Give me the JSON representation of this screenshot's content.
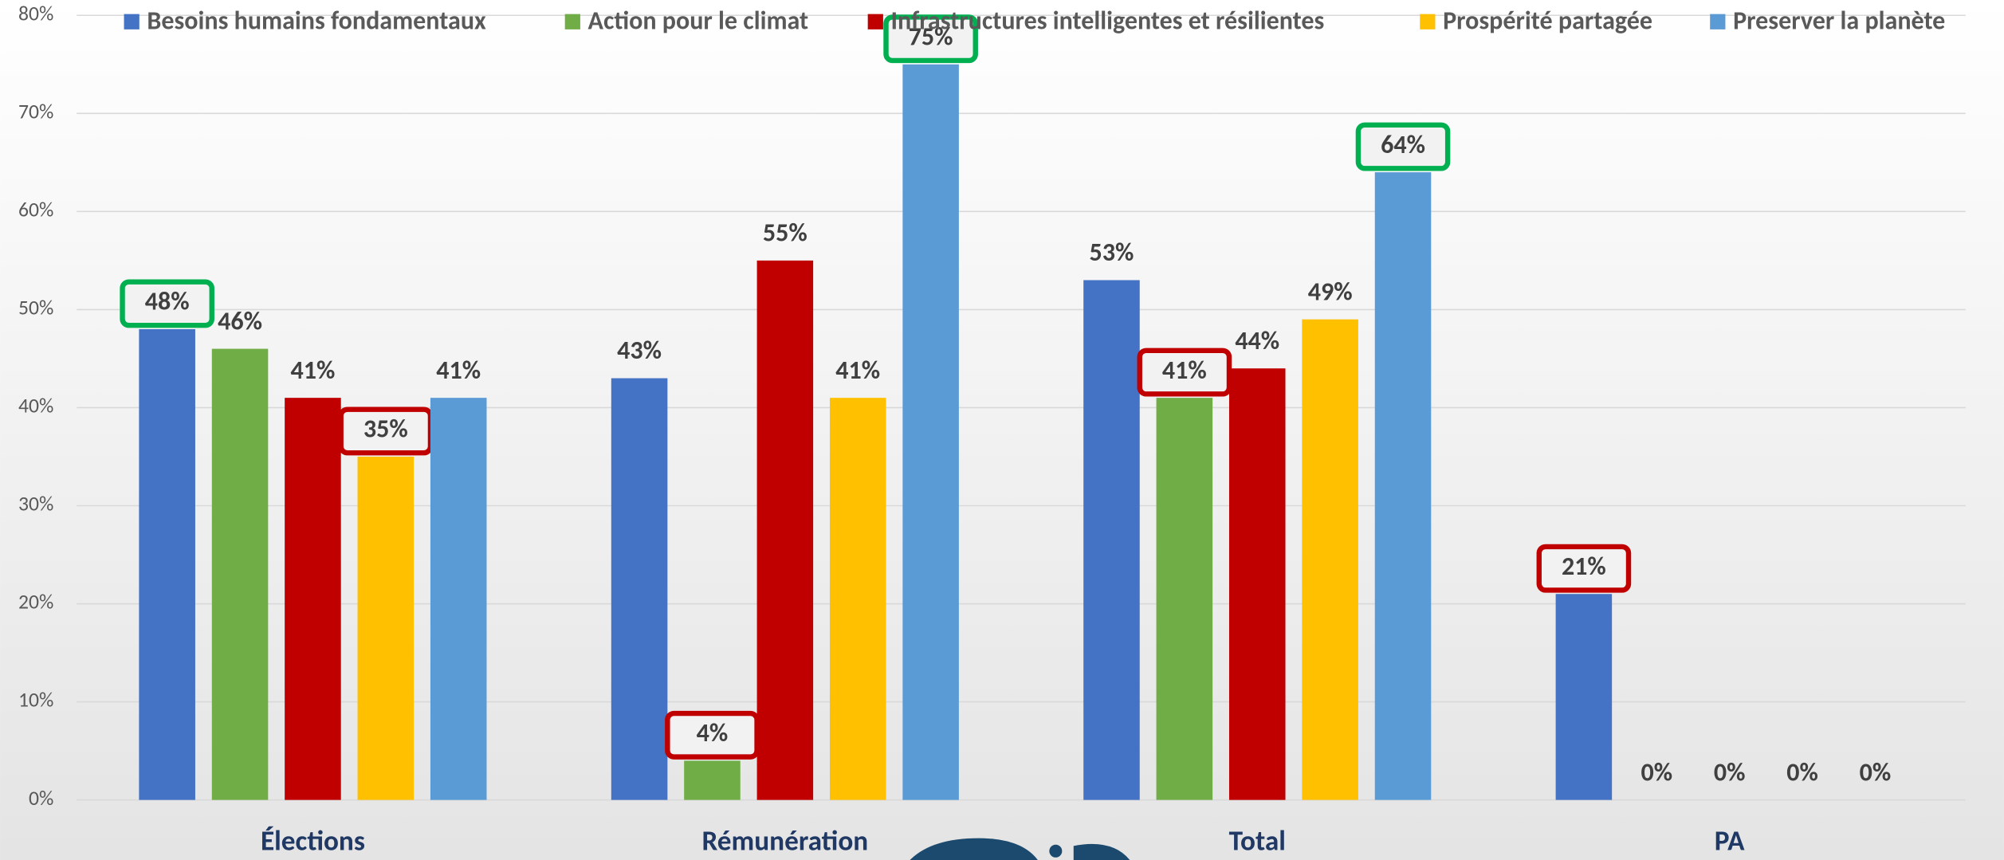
{
  "chart_data": {
    "type": "bar",
    "categories": [
      "Élections",
      "Rémunération",
      "Total",
      "PA"
    ],
    "series": [
      {
        "name": "Besoins humains fondamentaux",
        "color": "#4472c4",
        "values": [
          48,
          43,
          53,
          21
        ],
        "value_labels": [
          "48%",
          "43%",
          "53%",
          "21%"
        ]
      },
      {
        "name": "Action pour le climat",
        "color": "#70ad47",
        "values": [
          46,
          4,
          41,
          0
        ],
        "value_labels": [
          "46%",
          "4%",
          "41%",
          "0%"
        ]
      },
      {
        "name": "Infrastructures intelligentes et résilientes",
        "color": "#c00000",
        "values": [
          41,
          55,
          44,
          0
        ],
        "value_labels": [
          "41%",
          "55%",
          "44%",
          "0%"
        ]
      },
      {
        "name": "Prospérité partagée",
        "color": "#ffc000",
        "values": [
          35,
          41,
          49,
          0
        ],
        "value_labels": [
          "35%",
          "41%",
          "49%",
          "0%"
        ]
      },
      {
        "name": "Preserver la planète",
        "color": "#5b9bd5",
        "values": [
          41,
          75,
          64,
          0
        ],
        "value_labels": [
          "41%",
          "75%",
          "64%",
          "0%"
        ]
      }
    ],
    "ylim": [
      0,
      80
    ],
    "yticks": [
      {
        "value": 0,
        "label": "0%"
      },
      {
        "value": 10,
        "label": "10%"
      },
      {
        "value": 20,
        "label": "20%"
      },
      {
        "value": 30,
        "label": "30%"
      },
      {
        "value": 40,
        "label": "40%"
      },
      {
        "value": 50,
        "label": "50%"
      },
      {
        "value": 60,
        "label": "60%"
      },
      {
        "value": 70,
        "label": "70%"
      },
      {
        "value": 80,
        "label": "80%"
      }
    ],
    "grid": true,
    "legend": "top",
    "highlights": [
      {
        "series": 0,
        "index": 0,
        "color": "#00b050"
      },
      {
        "series": 4,
        "index": 1,
        "color": "#00b050"
      },
      {
        "series": 4,
        "index": 2,
        "color": "#00b050"
      },
      {
        "series": 3,
        "index": 0,
        "color": "#c00000"
      },
      {
        "series": 1,
        "index": 1,
        "color": "#c00000"
      },
      {
        "series": 1,
        "index": 2,
        "color": "#c00000"
      },
      {
        "series": 0,
        "index": 3,
        "color": "#c00000"
      }
    ]
  }
}
